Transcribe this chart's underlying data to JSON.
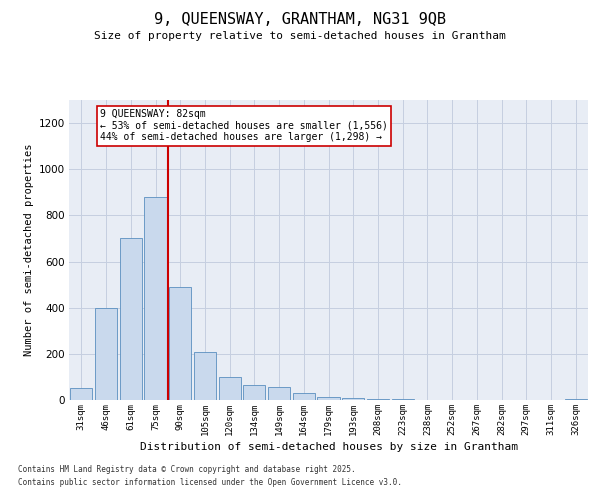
{
  "title": "9, QUEENSWAY, GRANTHAM, NG31 9QB",
  "subtitle": "Size of property relative to semi-detached houses in Grantham",
  "xlabel": "Distribution of semi-detached houses by size in Grantham",
  "ylabel": "Number of semi-detached properties",
  "annotation_line1": "9 QUEENSWAY: 82sqm",
  "annotation_line2": "← 53% of semi-detached houses are smaller (1,556)",
  "annotation_line3": "44% of semi-detached houses are larger (1,298) →",
  "categories": [
    "31sqm",
    "46sqm",
    "61sqm",
    "75sqm",
    "90sqm",
    "105sqm",
    "120sqm",
    "134sqm",
    "149sqm",
    "164sqm",
    "179sqm",
    "193sqm",
    "208sqm",
    "223sqm",
    "238sqm",
    "252sqm",
    "267sqm",
    "282sqm",
    "297sqm",
    "311sqm",
    "326sqm"
  ],
  "bar_values": [
    50,
    400,
    700,
    880,
    490,
    210,
    100,
    65,
    55,
    30,
    15,
    10,
    5,
    3,
    2,
    1,
    1,
    1,
    0,
    0,
    5
  ],
  "bar_color": "#c9d9ed",
  "bar_edge_color": "#5a8fc0",
  "red_line_x": 3.5,
  "ylim_max": 1300,
  "yticks": [
    0,
    200,
    400,
    600,
    800,
    1000,
    1200
  ],
  "grid_color": "#c5cfe0",
  "bg_color": "#e8edf5",
  "footnote1": "Contains HM Land Registry data © Crown copyright and database right 2025.",
  "footnote2": "Contains public sector information licensed under the Open Government Licence v3.0."
}
